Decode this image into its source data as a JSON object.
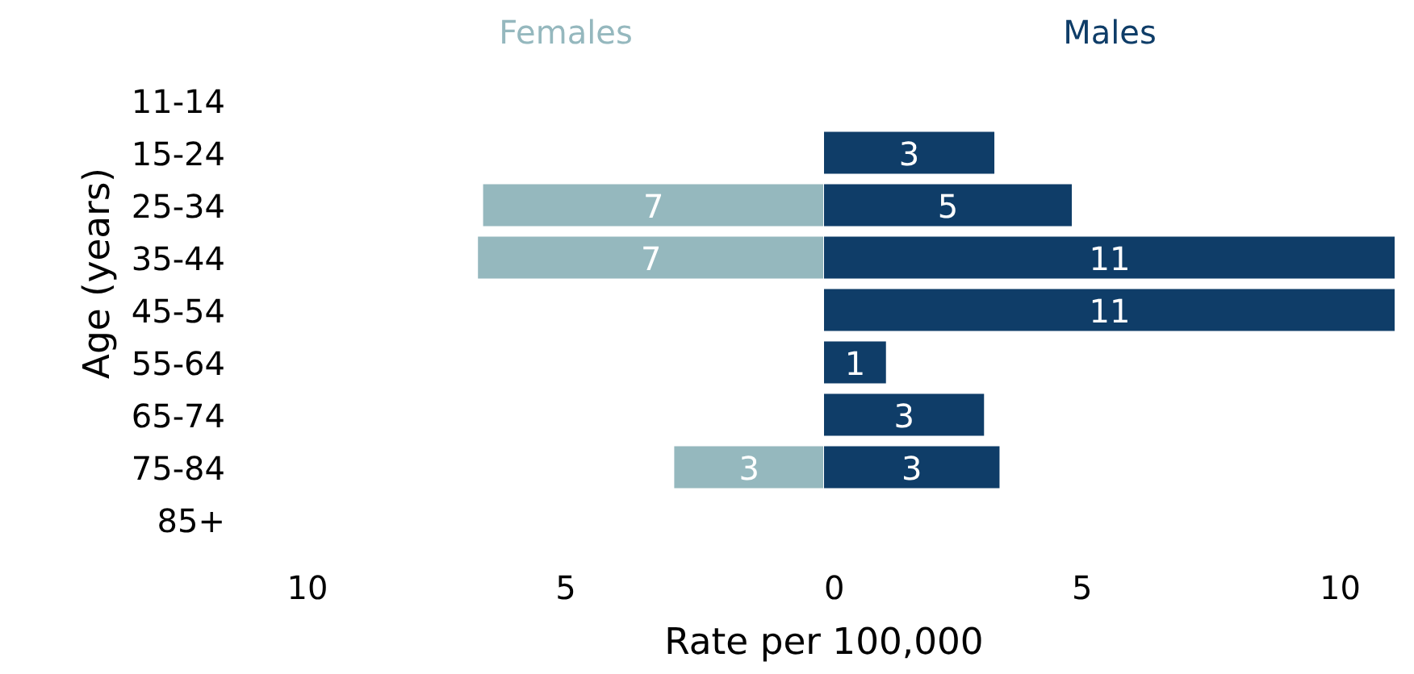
{
  "chart_data": [
    {
      "type": "bar",
      "orientation": "horizontal",
      "title": "Females",
      "xlabel": "Rate per 100,000",
      "ylabel": "Age (years)",
      "categories": [
        "11-14",
        "15-24",
        "25-34",
        "35-44",
        "45-54",
        "55-64",
        "65-74",
        "75-84",
        "85+"
      ],
      "series": [
        {
          "color": "#95b8be",
          "values": [
            null,
            null,
            6.6,
            6.7,
            null,
            null,
            null,
            2.9,
            null
          ],
          "value_labels": [
            null,
            null,
            "7",
            "7",
            null,
            null,
            null,
            "3",
            null
          ]
        }
      ],
      "xlim": [
        10,
        0
      ],
      "xticks": [
        10,
        5
      ],
      "grid": false
    },
    {
      "type": "bar",
      "orientation": "horizontal",
      "title": "Males",
      "series": [
        {
          "color": "#0f3d68",
          "values": [
            null,
            3.3,
            4.8,
            11.07,
            11.07,
            1.2,
            3.1,
            3.4,
            null
          ],
          "value_labels": [
            null,
            "3",
            "5",
            "11",
            "11",
            "1",
            "3",
            "3",
            null
          ]
        }
      ],
      "xlim": [
        0,
        11.07
      ],
      "xticks": [
        0,
        5,
        10
      ],
      "tick_labels": "x",
      "grid": false
    }
  ]
}
